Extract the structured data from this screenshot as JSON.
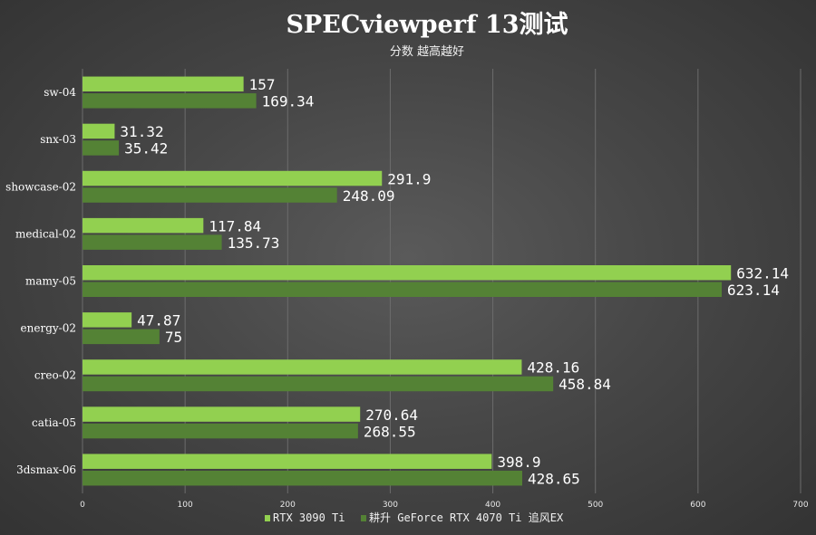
{
  "chart_data": {
    "type": "bar",
    "orientation": "horizontal",
    "title": "SPECviewperf 13测试",
    "subtitle": "分数 越高越好",
    "categories": [
      "sw-04",
      "snx-03",
      "showcase-02",
      "medical-02",
      "mamy-05",
      "energy-02",
      "creo-02",
      "catia-05",
      "3dsmax-06"
    ],
    "series": [
      {
        "name": "RTX 3090 Ti",
        "color": "#92d050",
        "values": [
          157,
          31.32,
          291.9,
          117.84,
          632.14,
          47.87,
          428.16,
          270.64,
          398.9
        ],
        "labels": [
          "157",
          "31.32",
          "291.9",
          "117.84",
          "632.14",
          "47.87",
          "428.16",
          "270.64",
          "398.9"
        ]
      },
      {
        "name": "耕升 GeForce RTX 4070 Ti 追风EX",
        "color": "#548235",
        "values": [
          169.34,
          35.42,
          248.09,
          135.73,
          623.14,
          75,
          458.84,
          268.55,
          428.65
        ],
        "labels": [
          "169.34",
          "35.42",
          "248.09",
          "135.73",
          "623.14",
          "75",
          "458.84",
          "268.55",
          "428.65"
        ]
      }
    ],
    "xlim": [
      0,
      700
    ],
    "xticks": [
      "0",
      "100",
      "200",
      "300",
      "400",
      "500",
      "600",
      "700"
    ],
    "grid": true,
    "legend_position": "bottom"
  }
}
